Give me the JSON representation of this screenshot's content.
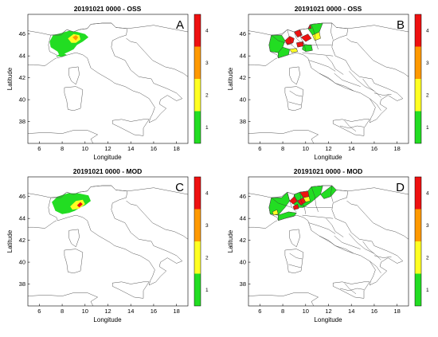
{
  "figure": {
    "panels": [
      {
        "id": "A",
        "title": "20191021 0000 - OSS",
        "label": "A",
        "xlabel": "Longitude",
        "ylabel": "Latitude",
        "xticks": [
          "6",
          "8",
          "10",
          "12",
          "14",
          "16",
          "18"
        ],
        "yticks": [
          "38",
          "40",
          "42",
          "44",
          "46"
        ],
        "map_mode": "contour",
        "show_region_borders": false
      },
      {
        "id": "B",
        "title": "20191021 0000 - OSS",
        "label": "B",
        "xlabel": "Longitude",
        "ylabel": "Latitude",
        "xticks": [
          "6",
          "8",
          "10",
          "12",
          "14",
          "16",
          "18"
        ],
        "yticks": [
          "38",
          "40",
          "42",
          "44",
          "46"
        ],
        "map_mode": "alert-zones",
        "show_region_borders": true
      },
      {
        "id": "C",
        "title": "20191021 0000 - MOD",
        "label": "C",
        "xlabel": "Longitude",
        "ylabel": "Latitude",
        "xticks": [
          "6",
          "8",
          "10",
          "12",
          "14",
          "16",
          "18"
        ],
        "yticks": [
          "38",
          "40",
          "42",
          "44",
          "46"
        ],
        "map_mode": "contour",
        "show_region_borders": false
      },
      {
        "id": "D",
        "title": "20191021 0000 - MOD",
        "label": "D",
        "xlabel": "Longitude",
        "ylabel": "Latitude",
        "xticks": [
          "6",
          "8",
          "10",
          "12",
          "14",
          "16",
          "18"
        ],
        "yticks": [
          "38",
          "40",
          "42",
          "44",
          "46"
        ],
        "map_mode": "alert-zones",
        "show_region_borders": true
      }
    ],
    "colorbar": {
      "levels": [
        "1",
        "2",
        "3",
        "4"
      ],
      "colors": [
        "#22dd22",
        "#ffff22",
        "#ff9900",
        "#ee1111"
      ]
    },
    "colors": {
      "land_outline": "#555555",
      "region_border": "#333333",
      "axis": "#000000"
    }
  }
}
